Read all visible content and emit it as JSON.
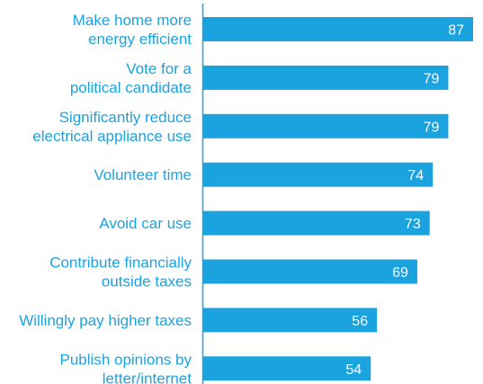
{
  "chart_data": {
    "type": "bar",
    "orientation": "horizontal",
    "categories": [
      [
        "Make home more",
        "energy efficient"
      ],
      [
        "Vote for a",
        "political candidate"
      ],
      [
        "Significantly reduce",
        "electrical appliance use"
      ],
      [
        "Volunteer time"
      ],
      [
        "Avoid car use"
      ],
      [
        "Contribute financially",
        "outside taxes"
      ],
      [
        "Willingly pay higher taxes"
      ],
      [
        "Publish opinions by",
        "letter/internet"
      ]
    ],
    "values": [
      87,
      79,
      79,
      74,
      73,
      69,
      56,
      54
    ],
    "xlim": [
      0,
      87
    ],
    "grid": false,
    "legend": false,
    "colors": {
      "bar": "#1BA3E0",
      "label": "#1BA3E0",
      "value_text": "#FFFFFF",
      "axis": "#1BA3E0"
    }
  }
}
